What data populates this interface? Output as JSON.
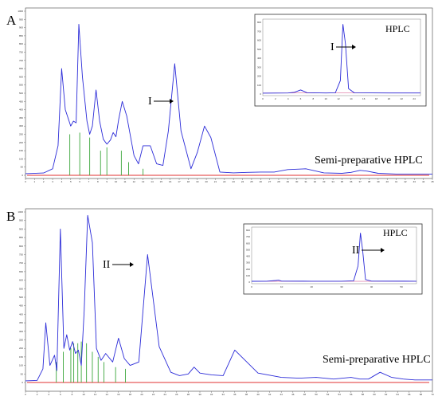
{
  "chart_data": [
    {
      "type": "line",
      "panel_label": "A",
      "xlim": [
        0,
        45
      ],
      "ylim": [
        0,
        1000
      ],
      "series_label": "Semi-preparative HPLC",
      "peak_arrow_label": "I",
      "x": [
        0,
        2,
        3,
        3.6,
        4,
        4.4,
        5,
        5.3,
        5.6,
        5.9,
        6.3,
        6.8,
        7.1,
        7.4,
        7.8,
        8.2,
        8.6,
        9.0,
        9.4,
        9.7,
        10.0,
        10.3,
        10.7,
        11.2,
        12.0,
        12.5,
        13.0,
        13.8,
        14.5,
        15.2,
        15.8,
        16.5,
        17.2,
        18.3,
        19.0,
        19.8,
        20.5,
        21.5,
        23,
        24.5,
        26,
        27.5,
        29,
        31,
        33,
        35,
        36,
        37,
        37.8,
        39,
        41,
        43,
        45
      ],
      "y": [
        10,
        14,
        40,
        180,
        650,
        400,
        300,
        330,
        320,
        920,
        600,
        330,
        250,
        300,
        520,
        330,
        220,
        190,
        215,
        260,
        235,
        340,
        450,
        360,
        120,
        70,
        180,
        180,
        70,
        60,
        270,
        680,
        270,
        40,
        140,
        300,
        230,
        20,
        15,
        18,
        20,
        20,
        35,
        40,
        15,
        12,
        18,
        30,
        25,
        12,
        8,
        8,
        8
      ],
      "fraction_lines_x": [
        4.9,
        6.0,
        7.1,
        8.3,
        9.0,
        10.6,
        11.4,
        13.0
      ],
      "fraction_lines_height": [
        250,
        260,
        230,
        150,
        170,
        150,
        80,
        40
      ],
      "inset": {
        "title": "HPLC",
        "peak_arrow_label": "I",
        "xlim": [
          0,
          25
        ],
        "ylim": [
          0,
          800
        ],
        "x": [
          0,
          4,
          5,
          6,
          6.5,
          7,
          10,
          11.5,
          12.3,
          12.7,
          13.1,
          13.6,
          14.5,
          20,
          25
        ],
        "y": [
          10,
          12,
          20,
          45,
          30,
          15,
          12,
          14,
          150,
          780,
          560,
          60,
          14,
          12,
          12
        ]
      }
    },
    {
      "type": "line",
      "panel_label": "B",
      "xlim": [
        0,
        70
      ],
      "ylim": [
        0,
        1000
      ],
      "series_label": "Semi-preparative HPLC",
      "peak_arrow_label": "II",
      "x": [
        0,
        2,
        3,
        3.5,
        4.2,
        5,
        5.4,
        6,
        6.6,
        7.1,
        7.6,
        8.1,
        8.6,
        9.1,
        9.6,
        10.1,
        10.7,
        11.5,
        12.2,
        13,
        13.8,
        15,
        16,
        17,
        18,
        19.5,
        21,
        23,
        25,
        26.5,
        28,
        29,
        30,
        32,
        34,
        36,
        40,
        44,
        47,
        50,
        53,
        56,
        57.5,
        59,
        61,
        63,
        65,
        67,
        70
      ],
      "y": [
        10,
        12,
        80,
        350,
        100,
        160,
        70,
        900,
        200,
        280,
        190,
        240,
        170,
        190,
        100,
        420,
        980,
        820,
        200,
        130,
        170,
        120,
        260,
        140,
        100,
        120,
        750,
        210,
        60,
        40,
        50,
        90,
        55,
        45,
        40,
        190,
        55,
        30,
        25,
        30,
        20,
        30,
        20,
        20,
        60,
        30,
        20,
        15,
        15
      ],
      "fraction_lines_x": [
        5.3,
        6.5,
        7.8,
        8.3,
        9.0,
        9.6,
        10.5,
        11.5,
        12.5,
        13.5,
        15.5,
        17.2
      ],
      "fraction_lines_height": [
        120,
        180,
        200,
        230,
        230,
        240,
        230,
        180,
        150,
        120,
        90,
        80
      ],
      "inset": {
        "title": "HPLC",
        "peak_arrow_label": "II",
        "xlim": [
          0,
          55
        ],
        "ylim": [
          0,
          800
        ],
        "x": [
          0,
          5,
          8,
          9,
          10,
          20,
          30,
          34,
          35.5,
          36.3,
          37,
          38,
          40,
          55
        ],
        "y": [
          12,
          14,
          25,
          30,
          15,
          14,
          14,
          20,
          250,
          760,
          500,
          40,
          15,
          14
        ]
      }
    }
  ]
}
